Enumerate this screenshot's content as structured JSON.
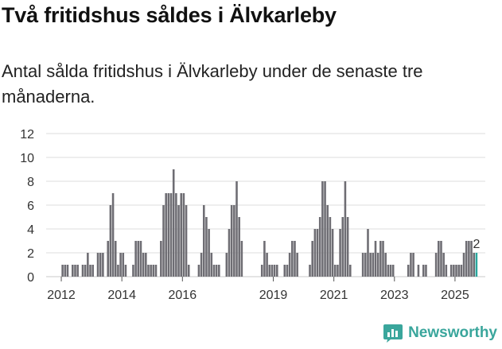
{
  "header": {
    "title": "Två fritidshus såldes i Älvkarleby",
    "subtitle": "Antal sålda fritidshus i Älvkarleby under de senaste tre månaderna."
  },
  "brand": {
    "name": "Newsworthy",
    "icon": "newsworthy-chart-icon",
    "color": "#3aa69c"
  },
  "colors": {
    "bar": "#6e6d73",
    "highlight": "#2aa79e",
    "grid": "#dcdcdc"
  },
  "chart_data": {
    "type": "bar",
    "title": "Två fritidshus såldes i Älvkarleby",
    "subtitle": "Antal sålda fritidshus i Älvkarleby under de senaste tre månaderna.",
    "xlabel": "",
    "ylabel": "",
    "ylim": [
      0,
      12
    ],
    "yticks": [
      0,
      2,
      4,
      6,
      8,
      10,
      12
    ],
    "xticks": [
      "2012",
      "2014",
      "2016",
      "2019",
      "2021",
      "2023",
      "2025"
    ],
    "grid": true,
    "x": [
      "2012-01",
      "2012-02",
      "2012-03",
      "2012-04",
      "2012-05",
      "2012-06",
      "2012-07",
      "2012-08",
      "2012-09",
      "2012-10",
      "2012-11",
      "2012-12",
      "2013-01",
      "2013-02",
      "2013-03",
      "2013-04",
      "2013-05",
      "2013-06",
      "2013-07",
      "2013-08",
      "2013-09",
      "2013-10",
      "2013-11",
      "2013-12",
      "2014-01",
      "2014-02",
      "2014-03",
      "2014-04",
      "2014-05",
      "2014-06",
      "2014-07",
      "2014-08",
      "2014-09",
      "2014-10",
      "2014-11",
      "2014-12",
      "2015-01",
      "2015-02",
      "2015-03",
      "2015-04",
      "2015-05",
      "2015-06",
      "2015-07",
      "2015-08",
      "2015-09",
      "2015-10",
      "2015-11",
      "2015-12",
      "2016-01",
      "2016-02",
      "2016-03",
      "2016-04",
      "2016-05",
      "2016-06",
      "2016-07",
      "2016-08",
      "2016-09",
      "2016-10",
      "2016-11",
      "2016-12",
      "2017-01",
      "2017-02",
      "2017-03",
      "2017-04",
      "2017-05",
      "2017-06",
      "2017-07",
      "2017-08",
      "2017-09",
      "2017-10",
      "2017-11",
      "2017-12",
      "2018-01",
      "2018-02",
      "2018-03",
      "2018-04",
      "2018-05",
      "2018-06",
      "2018-07",
      "2018-08",
      "2018-09",
      "2018-10",
      "2018-11",
      "2018-12",
      "2019-01",
      "2019-02",
      "2019-03",
      "2019-04",
      "2019-05",
      "2019-06",
      "2019-07",
      "2019-08",
      "2019-09",
      "2019-10",
      "2019-11",
      "2019-12",
      "2020-01",
      "2020-02",
      "2020-03",
      "2020-04",
      "2020-05",
      "2020-06",
      "2020-07",
      "2020-08",
      "2020-09",
      "2020-10",
      "2020-11",
      "2020-12",
      "2021-01",
      "2021-02",
      "2021-03",
      "2021-04",
      "2021-05",
      "2021-06",
      "2021-07",
      "2021-08",
      "2021-09",
      "2021-10",
      "2021-11",
      "2021-12",
      "2022-01",
      "2022-02",
      "2022-03",
      "2022-04",
      "2022-05",
      "2022-06",
      "2022-07",
      "2022-08",
      "2022-09",
      "2022-10",
      "2022-11",
      "2022-12",
      "2023-01",
      "2023-02",
      "2023-03",
      "2023-04",
      "2023-05",
      "2023-06",
      "2023-07",
      "2023-08",
      "2023-09",
      "2023-10",
      "2023-11",
      "2023-12",
      "2024-01",
      "2024-02",
      "2024-03",
      "2024-04",
      "2024-05",
      "2024-06",
      "2024-07",
      "2024-08",
      "2024-09",
      "2024-10",
      "2024-11",
      "2024-12",
      "2025-01",
      "2025-02",
      "2025-03",
      "2025-04",
      "2025-05",
      "2025-06",
      "2025-07",
      "2025-08",
      "2025-09"
    ],
    "values": [
      1,
      1,
      1,
      0,
      1,
      1,
      1,
      0,
      1,
      1,
      2,
      1,
      1,
      0,
      2,
      2,
      2,
      0,
      3,
      6,
      7,
      3,
      1,
      2,
      2,
      1,
      0,
      0,
      1,
      3,
      3,
      3,
      2,
      2,
      1,
      1,
      1,
      1,
      0,
      3,
      6,
      7,
      7,
      7,
      9,
      7,
      6,
      7,
      7,
      6,
      1,
      0,
      0,
      0,
      1,
      2,
      6,
      5,
      4,
      2,
      1,
      1,
      1,
      0,
      0,
      2,
      4,
      6,
      6,
      8,
      5,
      3,
      0,
      0,
      0,
      0,
      0,
      0,
      0,
      1,
      3,
      2,
      1,
      1,
      1,
      1,
      0,
      0,
      1,
      1,
      2,
      3,
      3,
      2,
      0,
      0,
      0,
      0,
      1,
      3,
      4,
      4,
      5,
      8,
      8,
      6,
      5,
      4,
      1,
      1,
      4,
      5,
      8,
      5,
      1,
      0,
      0,
      0,
      0,
      2,
      2,
      4,
      2,
      2,
      3,
      2,
      3,
      3,
      2,
      1,
      1,
      1,
      0,
      0,
      0,
      0,
      0,
      1,
      2,
      2,
      0,
      1,
      0,
      1,
      1,
      0,
      0,
      0,
      2,
      3,
      3,
      2,
      1,
      0,
      1,
      1,
      1,
      1,
      1,
      2,
      3,
      3,
      3,
      2,
      2
    ],
    "highlight_last": true,
    "annotations": [
      {
        "x": "2025-09",
        "text": "2"
      }
    ]
  }
}
